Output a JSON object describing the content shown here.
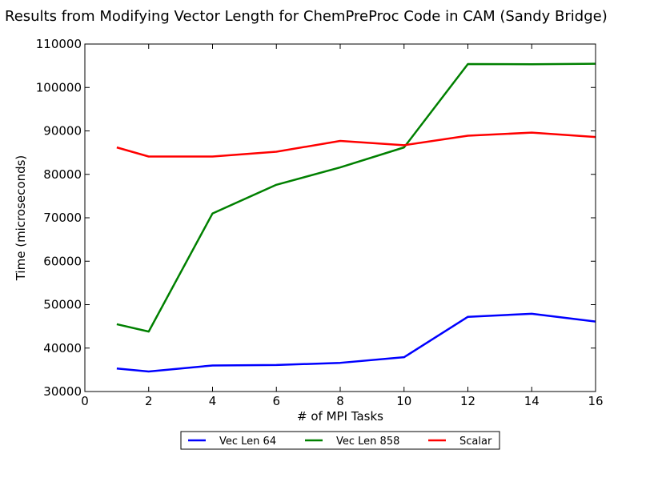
{
  "chart_data": {
    "type": "line",
    "title": "Results from Modifying Vector Length for ChemPreProc Code in CAM (Sandy Bridge)",
    "xlabel": "# of MPI Tasks",
    "ylabel": "Time (microseconds)",
    "xlim": [
      0,
      16
    ],
    "ylim": [
      30000,
      110000
    ],
    "xticks": [
      0,
      2,
      4,
      6,
      8,
      10,
      12,
      14,
      16
    ],
    "yticks": [
      30000,
      40000,
      50000,
      60000,
      70000,
      80000,
      90000,
      100000,
      110000
    ],
    "grid": false,
    "legend_position": "below plot, center",
    "series": [
      {
        "name": "Vec Len 64",
        "color": "#0000ff",
        "x": [
          1,
          2,
          4,
          6,
          8,
          10,
          12,
          14,
          16
        ],
        "y": [
          35300,
          34600,
          36000,
          36100,
          36600,
          37900,
          47200,
          47900,
          46100
        ]
      },
      {
        "name": "Vec Len 858",
        "color": "#008000",
        "x": [
          1,
          2,
          4,
          6,
          8,
          10,
          12,
          14,
          16
        ],
        "y": [
          45500,
          43800,
          71000,
          77600,
          81600,
          86200,
          105400,
          105350,
          105450
        ]
      },
      {
        "name": "Scalar",
        "color": "#ff0000",
        "x": [
          1,
          2,
          4,
          6,
          8,
          10,
          12,
          14,
          16
        ],
        "y": [
          86200,
          84100,
          84100,
          85200,
          87700,
          86700,
          88900,
          89600,
          88600
        ]
      }
    ]
  }
}
